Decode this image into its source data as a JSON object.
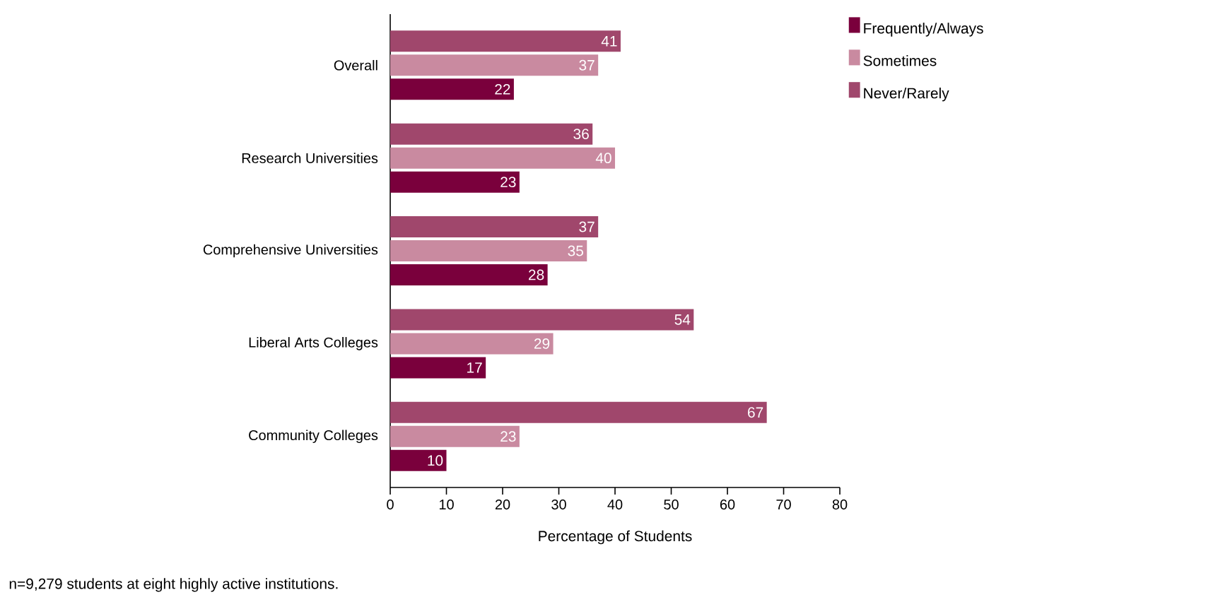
{
  "chart_data": {
    "type": "bar",
    "orientation": "horizontal",
    "xlabel": "Percentage of Students",
    "categories": [
      "Overall",
      "Research Universities",
      "Comprehensive Universities",
      "Liberal Arts Colleges",
      "Community Colleges"
    ],
    "series": [
      {
        "name": "Frequently/Always",
        "color": "#7a003c",
        "values": [
          22,
          23,
          28,
          17,
          10
        ]
      },
      {
        "name": "Sometimes",
        "color": "#c98aa0",
        "values": [
          37,
          40,
          35,
          29,
          23
        ]
      },
      {
        "name": "Never/Rarely",
        "color": "#a0476c",
        "values": [
          41,
          36,
          37,
          54,
          67
        ]
      }
    ],
    "xlim": [
      0,
      80
    ],
    "xticks": [
      0,
      10,
      20,
      30,
      40,
      50,
      60,
      70,
      80
    ],
    "data_labels": true,
    "legend": "top right",
    "grid": false,
    "annotations": [
      "n=9,279 students at eight highly active institutions."
    ]
  }
}
